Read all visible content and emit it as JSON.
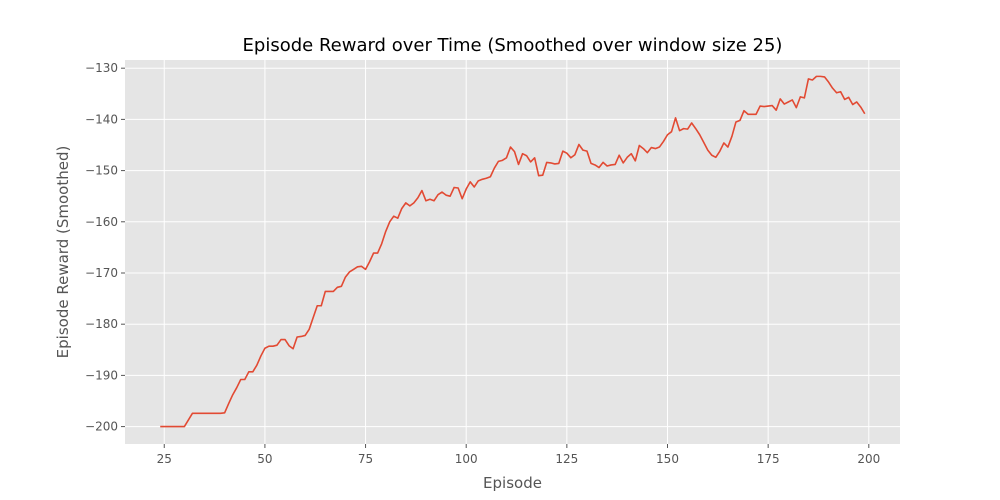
{
  "chart_data": {
    "type": "line",
    "title": "Episode Reward over Time (Smoothed over window size 25)",
    "xlabel": "Episode",
    "ylabel": "Episode Reward (Smoothed)",
    "xlim": [
      15.25,
      207.75
    ],
    "ylim": [
      -203.4,
      -128.4
    ],
    "xticks": [
      25,
      50,
      75,
      100,
      125,
      150,
      175,
      200
    ],
    "yticks": [
      -200,
      -190,
      -180,
      -170,
      -160,
      -150,
      -140,
      -130
    ],
    "grid": true,
    "legend": "none",
    "background_color": "#E5E5E5",
    "grid_color": "#FFFFFF",
    "series": [
      {
        "color": "#E24A33",
        "x": [
          24,
          25,
          26,
          27,
          28,
          29,
          30,
          31,
          32,
          33,
          34,
          35,
          36,
          37,
          38,
          39,
          40,
          41,
          42,
          43,
          44,
          45,
          46,
          47,
          48,
          49,
          50,
          51,
          52,
          53,
          54,
          55,
          56,
          57,
          58,
          59,
          60,
          61,
          62,
          63,
          64,
          65,
          66,
          67,
          68,
          69,
          70,
          71,
          72,
          73,
          74,
          75,
          76,
          77,
          78,
          79,
          80,
          81,
          82,
          83,
          84,
          85,
          86,
          87,
          88,
          89,
          90,
          91,
          92,
          93,
          94,
          95,
          96,
          97,
          98,
          99,
          100,
          101,
          102,
          103,
          104,
          105,
          106,
          107,
          108,
          109,
          110,
          111,
          112,
          113,
          114,
          115,
          116,
          117,
          118,
          119,
          120,
          121,
          122,
          123,
          124,
          125,
          126,
          127,
          128,
          129,
          130,
          131,
          132,
          133,
          134,
          135,
          136,
          137,
          138,
          139,
          140,
          141,
          142,
          143,
          144,
          145,
          146,
          147,
          148,
          149,
          150,
          151,
          152,
          153,
          154,
          155,
          156,
          157,
          158,
          159,
          160,
          161,
          162,
          163,
          164,
          165,
          166,
          167,
          168,
          169,
          170,
          171,
          172,
          173,
          174,
          175,
          176,
          177,
          178,
          179,
          180,
          181,
          182,
          183,
          184,
          185,
          186,
          187,
          188,
          189,
          190,
          191,
          192,
          193,
          194,
          195,
          196,
          197,
          198,
          199
        ],
        "y": [
          -200,
          -200,
          -200,
          -200,
          -200,
          -200,
          -200,
          -198.7,
          -197.4,
          -197.4,
          -197.4,
          -197.4,
          -197.4,
          -197.4,
          -197.4,
          -197.4,
          -197.3,
          -195.5,
          -193.8,
          -192.4,
          -190.8,
          -190.8,
          -189.3,
          -189.3,
          -188,
          -186.2,
          -184.7,
          -184.3,
          -184.3,
          -184.1,
          -183,
          -183,
          -184.2,
          -184.8,
          -182.5,
          -182.4,
          -182.2,
          -181,
          -178.7,
          -176.4,
          -176.4,
          -173.6,
          -173.6,
          -173.6,
          -172.8,
          -172.6,
          -170.8,
          -169.8,
          -169.3,
          -168.8,
          -168.7,
          -169.3,
          -167.8,
          -166.1,
          -166.1,
          -164.3,
          -161.9,
          -160,
          -158.9,
          -159.3,
          -157.4,
          -156.3,
          -156.9,
          -156.3,
          -155.3,
          -153.9,
          -155.9,
          -155.6,
          -155.9,
          -154.7,
          -154.2,
          -154.8,
          -155,
          -153.3,
          -153.4,
          -155.5,
          -153.6,
          -152.2,
          -153.2,
          -152,
          -151.7,
          -151.5,
          -151.2,
          -149.5,
          -148.2,
          -148,
          -147.5,
          -145.4,
          -146.3,
          -148.8,
          -146.7,
          -147.1,
          -148.3,
          -147.5,
          -151,
          -150.9,
          -148.4,
          -148.5,
          -148.7,
          -148.6,
          -146.2,
          -146.6,
          -147.5,
          -146.9,
          -144.9,
          -146,
          -146.2,
          -148.6,
          -148.9,
          -149.4,
          -148.4,
          -149.1,
          -148.9,
          -148.8,
          -147,
          -148.5,
          -147.4,
          -146.7,
          -148.1,
          -145.1,
          -145.7,
          -146.5,
          -145.5,
          -145.7,
          -145.4,
          -144.3,
          -143,
          -142.4,
          -139.7,
          -142.2,
          -141.8,
          -141.9,
          -140.7,
          -141.8,
          -143,
          -144.5,
          -146,
          -147,
          -147.4,
          -146.2,
          -144.6,
          -145.4,
          -143.3,
          -140.5,
          -140.2,
          -138.3,
          -139,
          -139,
          -139,
          -137.4,
          -137.5,
          -137.4,
          -137.3,
          -138.2,
          -136,
          -137,
          -136.6,
          -136.2,
          -137.7,
          -135.6,
          -135.8,
          -132.1,
          -132.3,
          -131.6,
          -131.6,
          -131.7,
          -132.7,
          -133.9,
          -134.8,
          -134.6,
          -136.1,
          -135.7,
          -137.1,
          -136.6,
          -137.6,
          -138.9
        ]
      }
    ]
  }
}
